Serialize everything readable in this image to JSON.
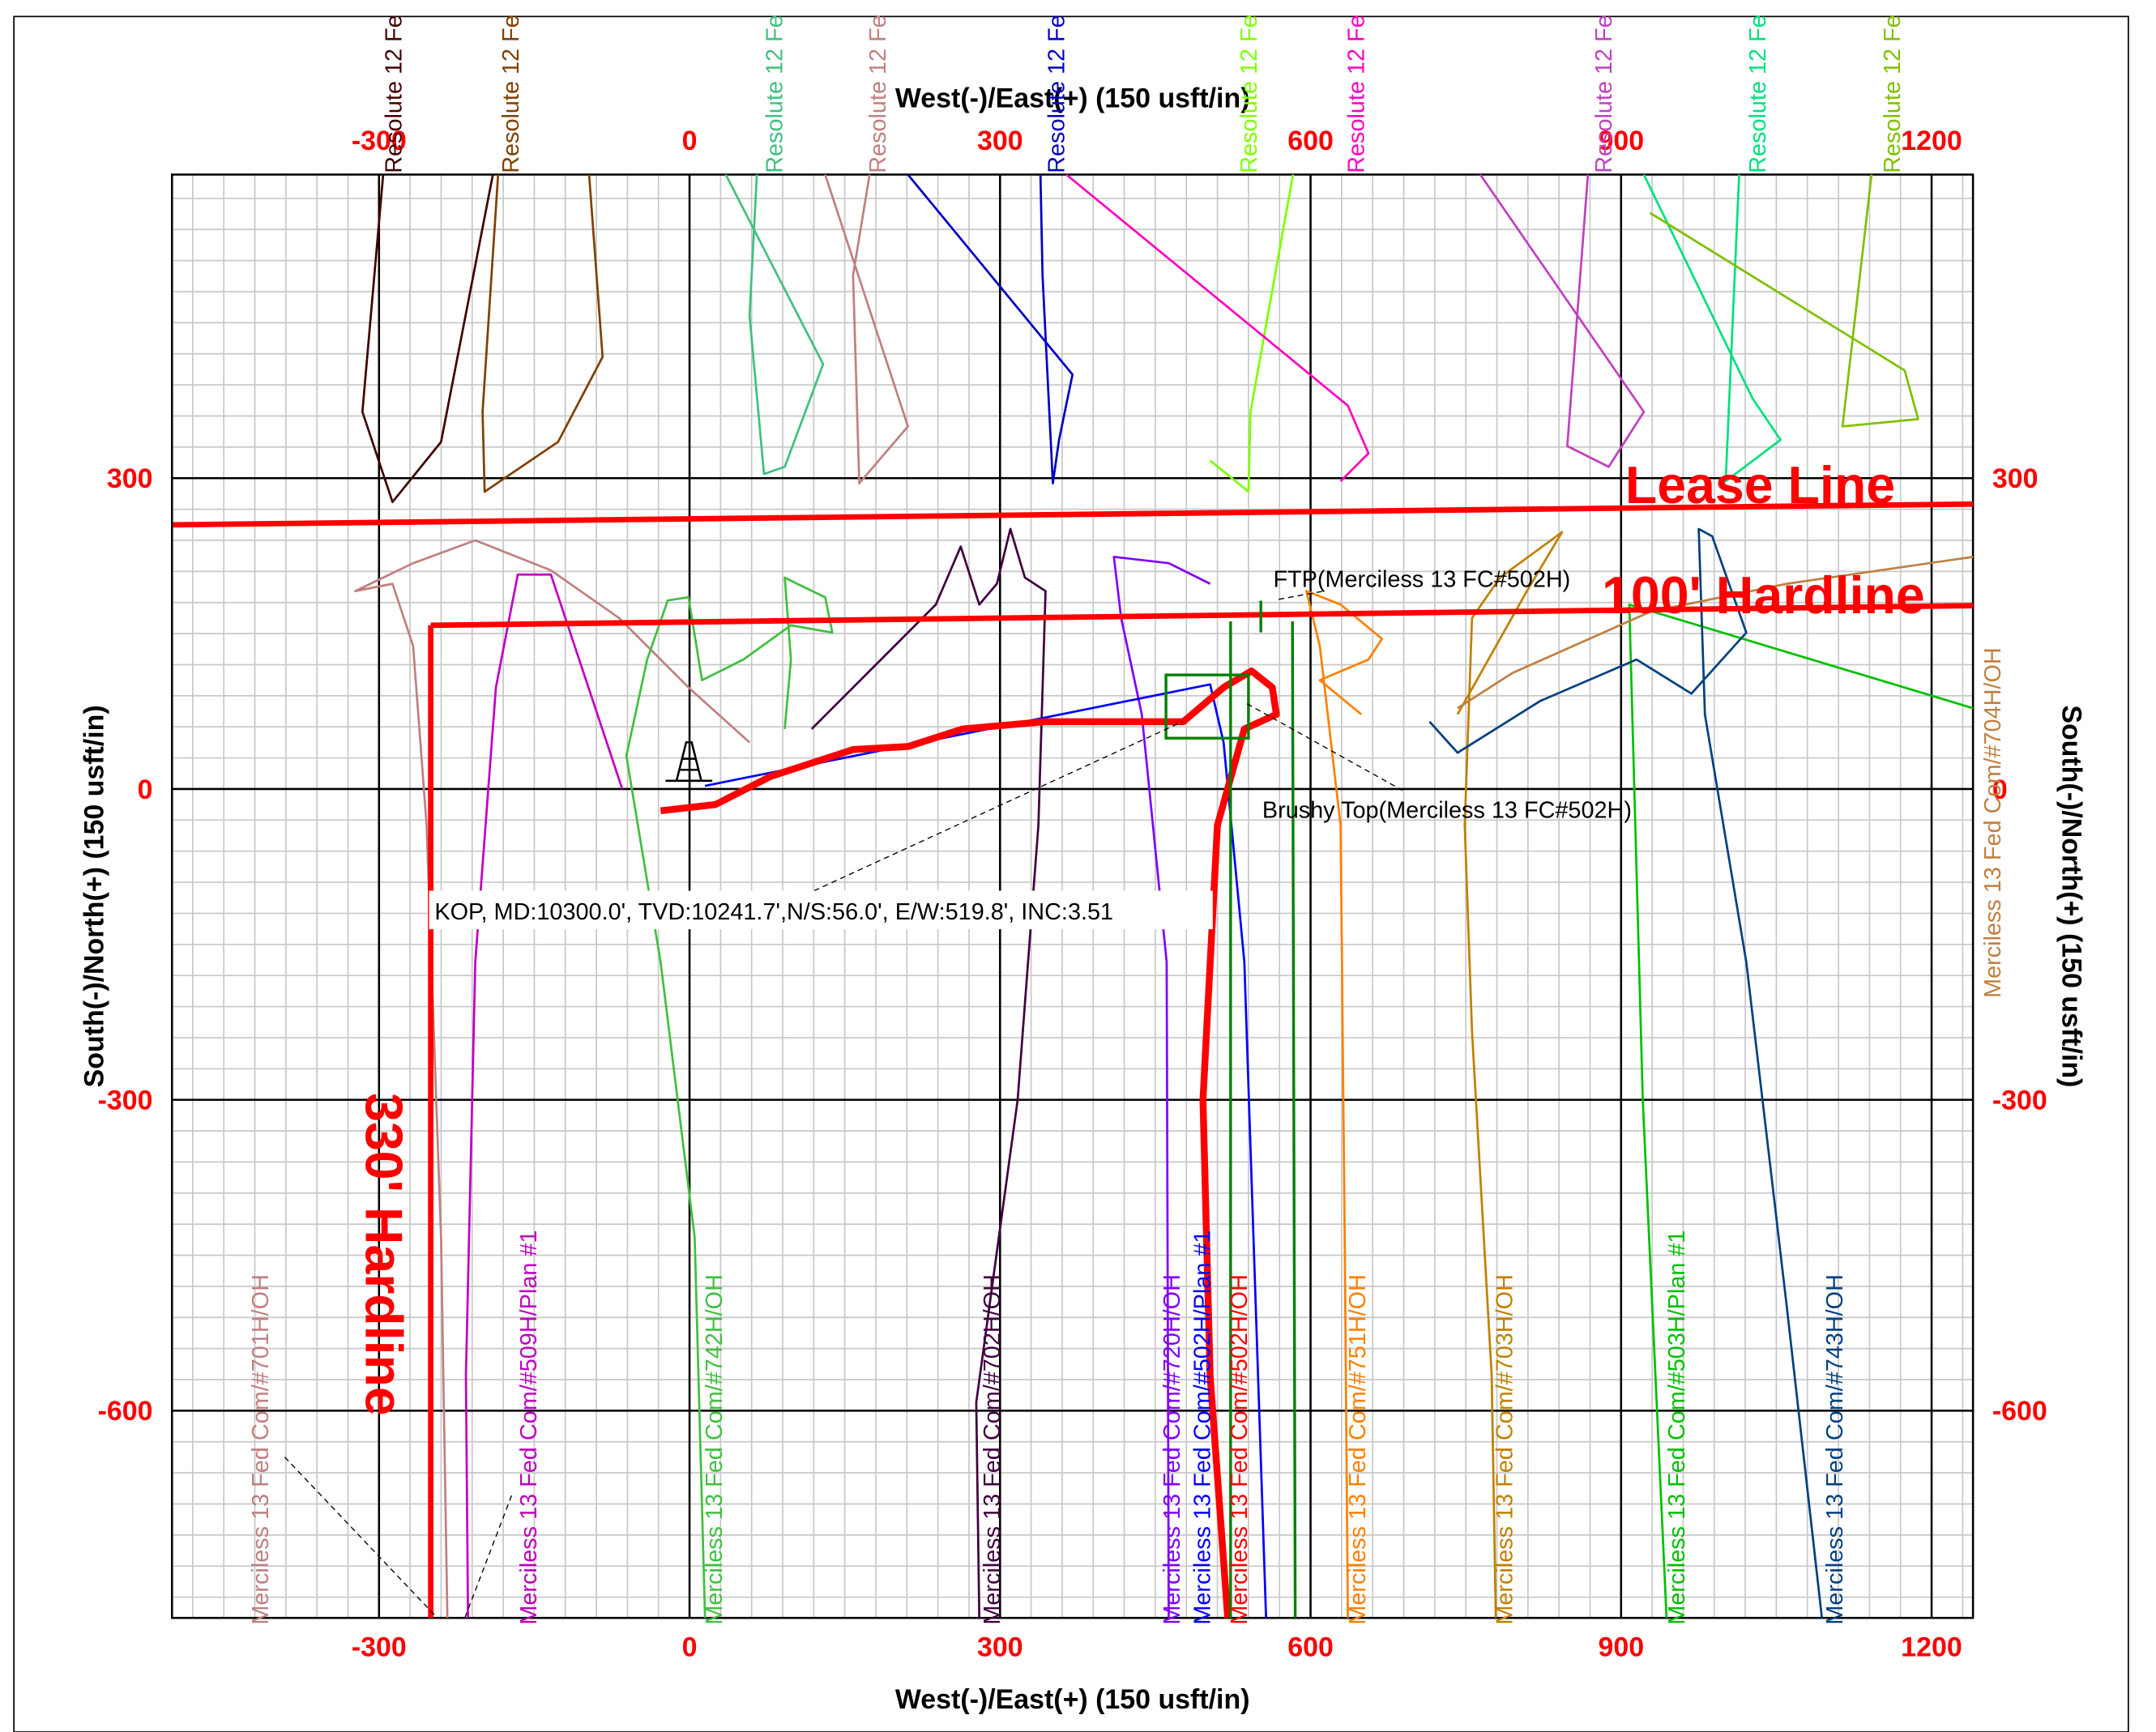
{
  "chart_data": {
    "type": "line",
    "x_label": "West(-)/East(+) (150 usft/in)",
    "y_label": "South(-)/North(+) (150 usft/in)",
    "xlim": [
      -500,
      1240
    ],
    "ylim": [
      -800,
      593
    ],
    "xticks": [
      -300,
      0,
      300,
      600,
      900,
      1200
    ],
    "yticks": [
      -600,
      -300,
      0,
      300
    ],
    "grid": true,
    "tick_label_color": "#ff0000",
    "boundaries": [
      {
        "label": "Lease Line",
        "color": "#ff0000",
        "x": [
          -499,
          1240
        ],
        "values": [
          255,
          275
        ]
      },
      {
        "label": "100' Hardline",
        "color": "#ff0000",
        "x": [
          -250,
          1240
        ],
        "values": [
          158,
          177
        ]
      },
      {
        "label": "330' Hardline",
        "color": "#ff0000",
        "x": [
          -250,
          -250
        ],
        "values": [
          158,
          -800
        ]
      }
    ],
    "annotations": [
      "FTP(Merciless 13 FC#502H)",
      "Brushy Top(Merciless 13 FC#502H)",
      "KOP, MD:10300.0', TVD:10241.7',N/S:56.0', E/W:519.8', INC:3.51"
    ],
    "series": [
      {
        "name": "Merciless 13 Fed Com/#701H/OH",
        "color": "#c08080",
        "x": [
          58,
          -1,
          -68,
          -134,
          -207,
          -267,
          -323,
          -287,
          -267,
          -254,
          -240,
          -234
        ],
        "values": [
          45,
          98,
          165,
          211,
          240,
          218,
          191,
          198,
          138,
          -35,
          -433,
          -800
        ]
      },
      {
        "name": "Merciless 13 Fed Com/#509H/Plan #1",
        "color": "#c000c0",
        "x": [
          -65,
          -134,
          -166,
          -187,
          -207,
          -216,
          -214
        ],
        "values": [
          0,
          207,
          207,
          98,
          -167,
          -566,
          -800
        ]
      },
      {
        "name": "Merciless 13 Fed Com/#742H/OH",
        "color": "#40c040",
        "x": [
          15,
          5,
          -28,
          -61,
          -41,
          -21,
          -1,
          12,
          52,
          98,
          138,
          131,
          104,
          92,
          98,
          92
        ],
        "values": [
          -800,
          -433,
          -167,
          32,
          125,
          182,
          185,
          105,
          125,
          158,
          151,
          185,
          198,
          204,
          125,
          58
        ]
      },
      {
        "name": "Merciless 13 Fed Com/#702H/OH",
        "color": "#400040",
        "x": [
          280,
          277,
          317,
          337,
          344,
          324,
          310,
          297,
          280,
          262,
          238,
          198,
          118
        ],
        "values": [
          -800,
          -592,
          -300,
          -35,
          191,
          204,
          251,
          198,
          178,
          234,
          178,
          138,
          58
        ]
      },
      {
        "name": "Merciless 13 Fed Com/#720H/OH",
        "color": "#8000ff",
        "x": [
          463,
          461,
          437,
          417,
          410,
          463,
          503
        ],
        "values": [
          -800,
          -167,
          72,
          165,
          224,
          218,
          198
        ]
      },
      {
        "name": "Merciless 13 Fed Com/#502H/Plan #1",
        "color": "#0000ff",
        "x": [
          15,
          503,
          516,
          536,
          557
        ],
        "values": [
          3,
          101,
          45,
          -167,
          -800
        ]
      },
      {
        "name": "Merciless 13 Fed Com/#502H/OH",
        "color": "#ff0000",
        "x": [
          -28,
          25,
          78,
          158,
          211,
          264,
          344,
          477,
          516,
          543,
          563,
          567,
          536,
          510,
          496,
          503,
          520
        ],
        "values": [
          -21,
          -15,
          12,
          38,
          41,
          58,
          65,
          65,
          98,
          114,
          98,
          72,
          58,
          -35,
          -300,
          -566,
          -800
        ]
      },
      {
        "name": "Merciless 13 Fed Com/#751H/OH",
        "color": "#ff8000",
        "x": [
          636,
          633,
          629,
          609,
          596,
          629,
          669,
          656,
          609,
          649
        ],
        "values": [
          -800,
          -433,
          -35,
          138,
          191,
          178,
          145,
          125,
          105,
          72
        ]
      },
      {
        "name": "Merciless 13 Fed Com/#703H/OH",
        "color": "#c08000",
        "x": [
          779,
          775,
          756,
          749,
          756,
          783,
          843,
          809,
          742
        ],
        "values": [
          -800,
          -566,
          -234,
          -35,
          165,
          204,
          248,
          191,
          72
        ]
      },
      {
        "name": "Merciless 13 Fed Com/#503H/Plan #1",
        "color": "#00c000",
        "x": [
          944,
          921,
          908,
          1240
        ],
        "values": [
          -800,
          -300,
          178,
          78
        ]
      },
      {
        "name": "Merciless 13 Fed Com/#743H/OH",
        "color": "#004080",
        "x": [
          1094,
          1060,
          1021,
          981,
          975,
          988,
          1021,
          968,
          915,
          822,
          742,
          715
        ],
        "values": [
          -800,
          -499,
          -167,
          72,
          251,
          244,
          151,
          92,
          125,
          85,
          35,
          65
        ]
      },
      {
        "name": "Merciless 13 Fed Com/#704H/OH",
        "color": "#c08040",
        "x": [
          742,
          795,
          928,
          1060,
          1240
        ],
        "values": [
          78,
          112,
          171,
          198,
          224
        ]
      },
      {
        "name": "Resolute 12 Fe",
        "color": "#400000",
        "x": [
          -296,
          -316,
          -287,
          -240,
          -190
        ],
        "values": [
          593,
          364,
          277,
          335,
          593
        ]
      },
      {
        "name": "Resolute 12 Fe",
        "color": "#804000",
        "x": [
          -185,
          -200,
          -198,
          -127,
          -84,
          -97
        ],
        "values": [
          593,
          364,
          287,
          335,
          417,
          593
        ]
      },
      {
        "name": "Resolute 12 Fe",
        "color": "#40c080",
        "x": [
          35,
          129,
          92,
          72,
          58,
          65
        ],
        "values": [
          593,
          410,
          311,
          304,
          457,
          593
        ]
      },
      {
        "name": "Resolute 12 Fe",
        "color": "#c08080",
        "x": [
          131,
          211,
          164,
          158,
          174
        ],
        "values": [
          593,
          350,
          295,
          496,
          593
        ]
      },
      {
        "name": "Resolute 12 Fe",
        "color": "#0000c0",
        "x": [
          211,
          370,
          357,
          351,
          341,
          339
        ],
        "values": [
          593,
          400,
          337,
          295,
          496,
          593
        ]
      },
      {
        "name": "Resolute 12 Fe",
        "color": "#80ff00",
        "x": [
          583,
          542,
          540,
          503
        ],
        "values": [
          593,
          364,
          287,
          317
        ]
      },
      {
        "name": "Resolute 12 Fe",
        "color": "#ff00c0",
        "x": [
          364,
          636,
          656,
          629
        ],
        "values": [
          593,
          370,
          324,
          297
        ]
      },
      {
        "name": "Resolute 12 Fe",
        "color": "#c040c0",
        "x": [
          764,
          922,
          888,
          848,
          868
        ],
        "values": [
          593,
          364,
          311,
          331,
          593
        ]
      },
      {
        "name": "Resolute 12 Fe",
        "color": "#00e080",
        "x": [
          922,
          1027,
          1054,
          1001,
          1014
        ],
        "values": [
          593,
          377,
          337,
          297,
          593
        ]
      },
      {
        "name": "Resolute 12 Fe",
        "color": "#80c000",
        "x": [
          928,
          1174,
          1187,
          1114,
          1142
        ],
        "values": [
          556,
          404,
          357,
          350,
          593
        ]
      }
    ]
  }
}
